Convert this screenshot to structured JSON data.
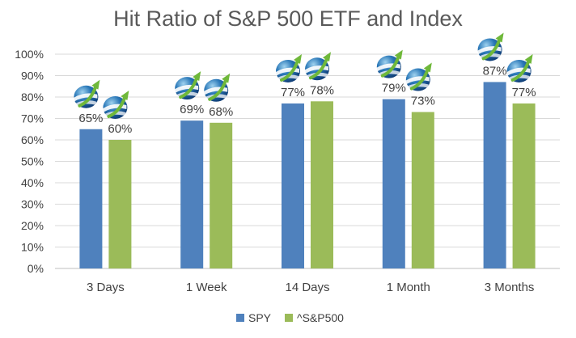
{
  "chart_data": {
    "type": "bar",
    "title": "Hit Ratio of S&P 500 ETF and Index",
    "xlabel": "",
    "ylabel": "",
    "categories": [
      "3 Days",
      "1 Week",
      "14 Days",
      "1 Month",
      "3 Months"
    ],
    "series": [
      {
        "name": "SPY",
        "color": "#4f81bd",
        "values": [
          65,
          69,
          77,
          79,
          87
        ],
        "labels": [
          "65%",
          "69%",
          "77%",
          "79%",
          "87%"
        ]
      },
      {
        "name": "^S&P500",
        "color": "#9bbb59",
        "values": [
          60,
          68,
          78,
          73,
          77
        ],
        "labels": [
          "60%",
          "68%",
          "78%",
          "73%",
          "77%"
        ]
      }
    ],
    "ylim": [
      0,
      100
    ],
    "yticks": [
      0,
      10,
      20,
      30,
      40,
      50,
      60,
      70,
      80,
      90,
      100
    ],
    "ytick_labels": [
      "0%",
      "10%",
      "20%",
      "30%",
      "40%",
      "50%",
      "60%",
      "70%",
      "80%",
      "90%",
      "100%"
    ],
    "grid": true,
    "legend_position": "bottom",
    "marker_icon": "globe-arrow-logo-icon"
  }
}
